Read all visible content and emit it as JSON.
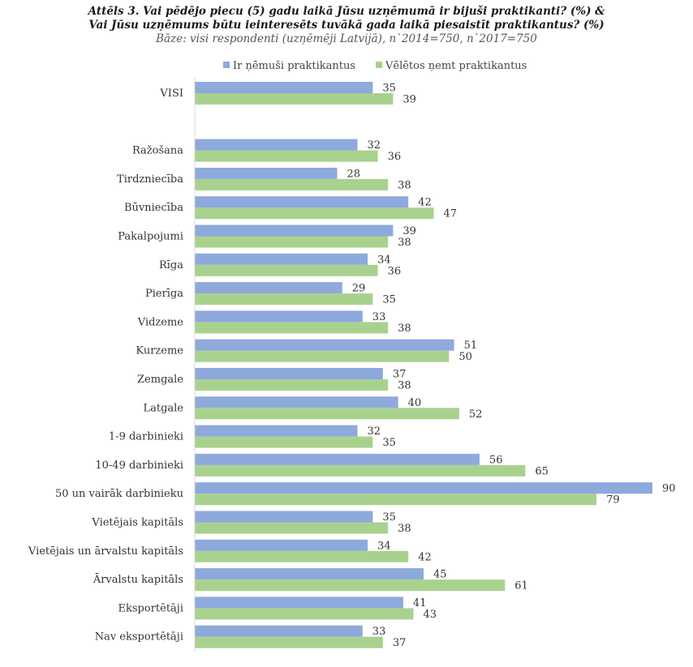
{
  "chart_data": {
    "type": "bar",
    "orientation": "horizontal",
    "title_lines": [
      "Attēls 3. Vai pēdējo piecu (5) gadu laikā Jūsu uzņēmumā ir bijuši praktikanti? (%) &",
      "Vai Jūsu uzņēmums būtu ieinteresēts tuvākā gada laikā piesaistīt praktikantus? (%)"
    ],
    "subtitle": "Bāze: visi respondenti (uzņēmēji Latvijā), n`2014=750, n`2017=750",
    "legend_position": "top",
    "grid": false,
    "xlim": [
      0,
      90
    ],
    "categories": [
      "VISI",
      "Ražošana",
      "Tirdzniecība",
      "Būvniecība",
      "Pakalpojumi",
      "Rīga",
      "Pierīga",
      "Vidzeme",
      "Kurzeme",
      "Zemgale",
      "Latgale",
      "1-9 darbinieki",
      "10-49 darbinieki",
      "50 un vairāk darbinieku",
      "Vietējais kapitāls",
      "Vietējais un ārvalstu kapitāls",
      "Ārvalstu kapitāls",
      "Eksportētāji",
      "Nav eksportētāji"
    ],
    "series": [
      {
        "name": "Ir ņēmuši praktikantus",
        "color": "#8EA9DB",
        "values": [
          35,
          32,
          28,
          42,
          39,
          34,
          29,
          33,
          51,
          37,
          40,
          32,
          56,
          90,
          35,
          34,
          45,
          41,
          33
        ]
      },
      {
        "name": "Vēlētos ņemt praktikantus",
        "color": "#A9D18E",
        "values": [
          39,
          36,
          38,
          47,
          38,
          36,
          35,
          38,
          50,
          38,
          52,
          35,
          65,
          79,
          38,
          42,
          61,
          43,
          37
        ]
      }
    ]
  }
}
